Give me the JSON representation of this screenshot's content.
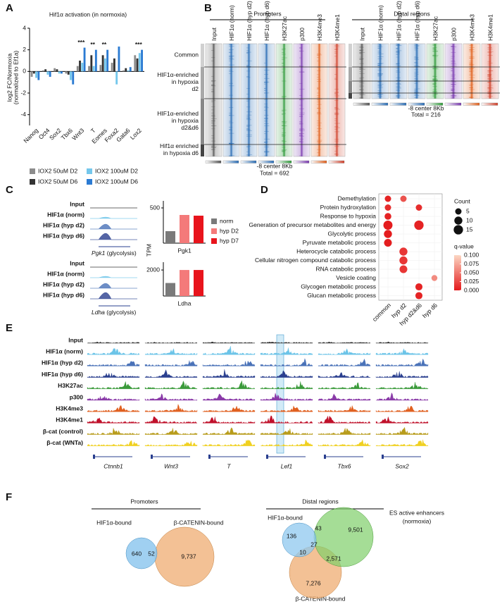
{
  "panel_a": {
    "letter": "A",
    "type": "bar",
    "title": "Hif1α activation (in normoxia)",
    "y_label": [
      "log2 FC/Normoxia",
      "(normalized to Ef1a)"
    ],
    "categories": [
      "Nanog",
      "Oct4",
      "Sox2",
      "Tbx6",
      "Wnt3",
      "T",
      "Eomes",
      "Foxa2",
      "Gata6",
      "Lox2"
    ],
    "series": [
      {
        "name": "IOX2 50uM D2",
        "color": "#8c8c8c",
        "values": [
          -0.5,
          0.1,
          0.3,
          -0.2,
          0.5,
          0.5,
          0.6,
          0.8,
          0.1,
          1.5
        ]
      },
      {
        "name": "IOX2 50uM D6",
        "color": "#333333",
        "values": [
          -0.2,
          0.2,
          0.2,
          -0.3,
          1.0,
          1.5,
          1.5,
          1.2,
          0.3,
          1.2
        ]
      },
      {
        "name": "IOX2 100uM D2",
        "color": "#74c7ec",
        "values": [
          -0.6,
          -0.3,
          -0.2,
          -0.8,
          0.8,
          0.5,
          1.2,
          -1.2,
          0.1,
          1.7
        ]
      },
      {
        "name": "IOX2 100uM D6",
        "color": "#2b7bd3",
        "values": [
          -0.8,
          -0.5,
          -0.2,
          -1.2,
          2.2,
          2.0,
          2.0,
          2.3,
          0.4,
          2.0
        ]
      }
    ],
    "significance": [
      null,
      null,
      null,
      null,
      "***",
      "**",
      "**",
      null,
      null,
      "***"
    ],
    "ylim": [
      -5,
      4
    ],
    "yticks": [
      4,
      2,
      0,
      -2,
      -4
    ]
  },
  "panel_b": {
    "letter": "B",
    "promoters_title": "Promoters",
    "distal_title": "Distal regions",
    "columns": [
      {
        "label": "Input",
        "color": "#555555"
      },
      {
        "label": "HIF1α (norm)",
        "color": "#2a6db5"
      },
      {
        "label": "HIF1α (hyp d2)",
        "color": "#2a6db5"
      },
      {
        "label": "HIF1α (hyp d6)",
        "color": "#2a6db5"
      },
      {
        "label": "H3K27ac",
        "color": "#2f9a3a"
      },
      {
        "label": "p300",
        "color": "#7a3ab0"
      },
      {
        "label": "H3K4me3",
        "color": "#e0601c"
      },
      {
        "label": "H3K4me1",
        "color": "#d0402a"
      }
    ],
    "rows": [
      "Common",
      "HIF1α-enriched in hypoxia d2",
      "HIF1α-enriched in hypoxia d2&d6",
      "Hif1α enriched in hypoxia d6"
    ],
    "scale_label": "-8  center 8Kb",
    "promoter_total": "Total = 692",
    "distal_total": "Total = 216"
  },
  "panel_c": {
    "letter": "C",
    "track_labels": [
      "Input",
      "HIF1α (norm)",
      "HIF1α (hyp d2)",
      "HIF1α (hyp d6)"
    ],
    "loci": [
      {
        "gene": "Pgk1",
        "note": " (glycolysis)"
      },
      {
        "gene": "Ldha",
        "note": " (glycolysis)"
      }
    ],
    "type": "bar",
    "y_label": "TPM",
    "categories": [
      "norm",
      "hyp D2",
      "hyp D7"
    ],
    "colors": [
      "#7a7a7a",
      "#f47a7a",
      "#e8141c"
    ],
    "charts": [
      {
        "title": "Pgk1",
        "values": [
          170,
          400,
          390
        ],
        "ylim": [
          0,
          600
        ],
        "yticks": [
          500
        ]
      },
      {
        "title": "Ldha",
        "values": [
          1000,
          2000,
          2000
        ],
        "ylim": [
          0,
          2600
        ],
        "yticks": [
          2000
        ]
      }
    ]
  },
  "panel_d": {
    "letter": "D",
    "type": "scatter",
    "categories": [
      "common",
      "hyp d2",
      "hyp d2&d6",
      "hyp d6"
    ],
    "terms": [
      "Demethylation",
      "Protein hydroxylation",
      "Response to hypoxia",
      "Generation of precursor metabolites and energy",
      "Glycolytic process",
      "Pyruvate metabolic process",
      "Heterocycle catabolic process",
      "Cellular nitrogen compound catabolic process",
      "RNA catabolic process",
      "Vesicle coating",
      "Glycogen metabolic process",
      "Glucan metabolic process"
    ],
    "points": [
      {
        "x": 0,
        "y": 0,
        "count": 5,
        "q": 0.005
      },
      {
        "x": 1,
        "y": 0,
        "count": 5,
        "q": 0.03
      },
      {
        "x": 0,
        "y": 1,
        "count": 5,
        "q": 0.01
      },
      {
        "x": 2,
        "y": 1,
        "count": 5,
        "q": 0.01
      },
      {
        "x": 0,
        "y": 2,
        "count": 6,
        "q": 0.005
      },
      {
        "x": 0,
        "y": 3,
        "count": 14,
        "q": 0.001
      },
      {
        "x": 2,
        "y": 3,
        "count": 15,
        "q": 0.005
      },
      {
        "x": 0,
        "y": 4,
        "count": 10,
        "q": 0.001
      },
      {
        "x": 0,
        "y": 5,
        "count": 9,
        "q": 0.002
      },
      {
        "x": 1,
        "y": 6,
        "count": 10,
        "q": 0.015
      },
      {
        "x": 1,
        "y": 7,
        "count": 10,
        "q": 0.015
      },
      {
        "x": 1,
        "y": 8,
        "count": 9,
        "q": 0.015
      },
      {
        "x": 3,
        "y": 9,
        "count": 4,
        "q": 0.06
      },
      {
        "x": 2,
        "y": 10,
        "count": 7,
        "q": 0.005
      },
      {
        "x": 2,
        "y": 11,
        "count": 7,
        "q": 0.005
      }
    ],
    "count_title": "Count",
    "count_sizes": [
      5,
      10,
      15
    ],
    "q_title": "q-value",
    "qlim": [
      0,
      0.1
    ],
    "q_ticks": [
      {
        "value": 0.1,
        "label": "0.100"
      },
      0.075,
      {
        "value": 0.05,
        "label": "0.050"
      },
      0.025,
      {
        "value": 0,
        "label": "0.000"
      }
    ]
  },
  "panel_e": {
    "letter": "E",
    "tracks": [
      {
        "label": "Input",
        "color": "#333333"
      },
      {
        "label": "HIF1α (norm)",
        "color": "#6cc4e8"
      },
      {
        "label": "HIF1α (hyp d2)",
        "color": "#4a72b8"
      },
      {
        "label": "HIF1α (hyp d6)",
        "color": "#2a3f8f"
      },
      {
        "label": "H3K27ac",
        "color": "#3a9a3a"
      },
      {
        "label": "p300",
        "color": "#8a3aa8"
      },
      {
        "label": "H3K4me3",
        "color": "#e06020"
      },
      {
        "label": "H3K4me1",
        "color": "#c0102a"
      },
      {
        "label": "β-cat (control)",
        "color": "#b89c1c"
      },
      {
        "label": "β-cat (WNTa)",
        "color": "#f0d020"
      }
    ],
    "genes": [
      "Ctnnb1",
      "Wnt3",
      "T",
      "Lef1",
      "Tbx6",
      "Sox2"
    ]
  },
  "panel_f": {
    "letter": "F",
    "promoters": {
      "title": "Promoters",
      "sets": [
        "HIF1α-bound",
        "β-CATENIN-bound"
      ],
      "hif_only": "640",
      "both": "52",
      "bcat_only": "9,737"
    },
    "distal": {
      "title": "Distal regions",
      "sets": [
        "HIF1α-bound",
        "ES active enhancers",
        "(normoxia)",
        "β-CATENIN-bound"
      ],
      "hif_only": "136",
      "hif_es": "43",
      "es_only": "9,501",
      "all": "27",
      "hif_bcat": "10",
      "es_bcat": "2,571",
      "bcat_only": "7,276"
    }
  }
}
